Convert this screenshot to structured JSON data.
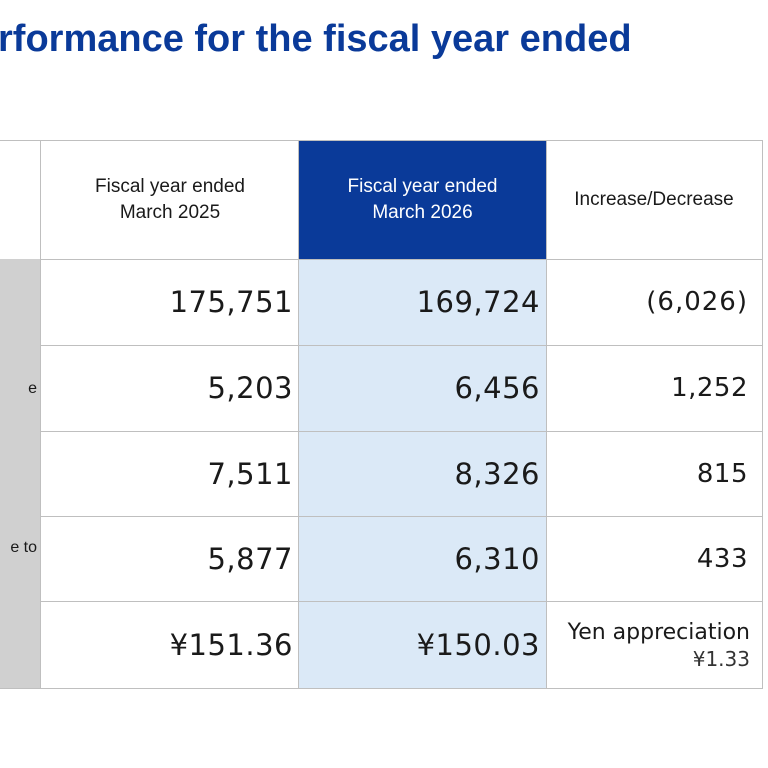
{
  "page": {
    "title": "rformance for the fiscal year ended"
  },
  "table": {
    "headers": {
      "col1": "Fiscal year ended\nMarch 2025",
      "col2": "Fiscal year ended\nMarch 2026",
      "col3": "Increase/Decrease"
    },
    "row_label_fragments": {
      "row2": "e",
      "row4": "e to"
    },
    "rows": [
      {
        "fy2025": "175,751",
        "fy2026": "169,724",
        "change": "(6,026)"
      },
      {
        "fy2025": "5,203",
        "fy2026": "6,456",
        "change": "1,252"
      },
      {
        "fy2025": "7,511",
        "fy2026": "8,326",
        "change": "815"
      },
      {
        "fy2025": "5,877",
        "fy2026": "6,310",
        "change": "433"
      },
      {
        "fy2025": "¥151.36",
        "fy2026": "¥150.03",
        "change_line1": "Yen appreciation",
        "change_line2": "¥1.33"
      }
    ]
  },
  "colors": {
    "title_blue": "#0a3a99",
    "highlight_header": "#0a3a99",
    "highlight_column": "#dbe9f7",
    "label_column": "#d0d0d0",
    "grid_line": "#bfbfbf"
  }
}
